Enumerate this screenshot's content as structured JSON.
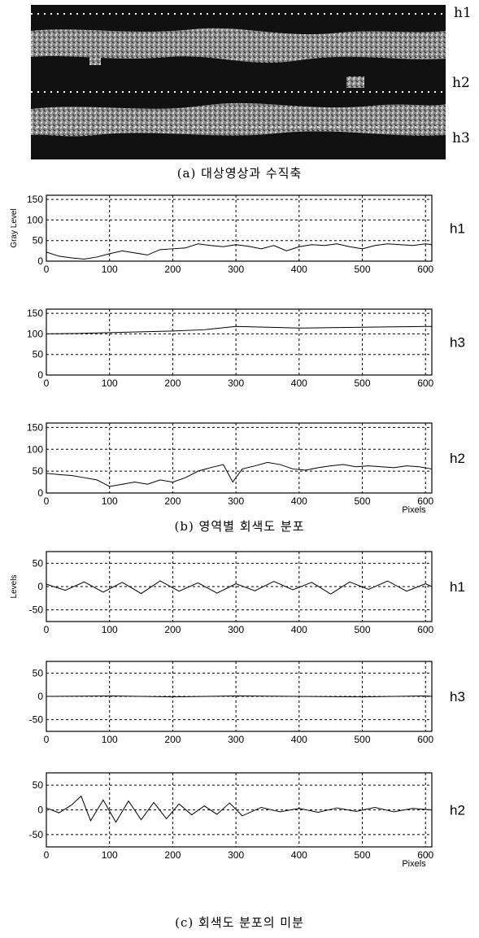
{
  "figure": {
    "image_labels": [
      "h1",
      "h2",
      "h3"
    ],
    "captions": {
      "a": "(a) 대상영상과 수직축",
      "b": "(b) 영역별 회색도 분포",
      "c": "(c) 회색도 분포의 미분"
    }
  },
  "chart_data": [
    {
      "type": "line",
      "id": "b-h1",
      "side_label": "h1",
      "ylabel": "Gray Level",
      "xlabel": "",
      "xlim": [
        0,
        610
      ],
      "ylim": [
        0,
        160
      ],
      "xticks": [
        0,
        100,
        200,
        300,
        400,
        500,
        600
      ],
      "yticks": [
        0,
        50,
        100,
        150
      ],
      "x": [
        0,
        20,
        40,
        60,
        80,
        100,
        120,
        140,
        160,
        180,
        200,
        220,
        240,
        260,
        280,
        300,
        320,
        340,
        360,
        380,
        400,
        420,
        440,
        460,
        480,
        500,
        520,
        540,
        560,
        580,
        600,
        610
      ],
      "y": [
        22,
        12,
        8,
        5,
        10,
        18,
        25,
        20,
        15,
        28,
        30,
        32,
        42,
        38,
        35,
        40,
        36,
        30,
        38,
        25,
        35,
        40,
        38,
        42,
        35,
        30,
        38,
        42,
        40,
        38,
        42,
        40
      ]
    },
    {
      "type": "line",
      "id": "b-h3",
      "side_label": "h3",
      "ylabel": "",
      "xlabel": "",
      "xlim": [
        0,
        610
      ],
      "ylim": [
        0,
        160
      ],
      "xticks": [
        0,
        100,
        200,
        300,
        400,
        500,
        600
      ],
      "yticks": [
        0,
        50,
        100,
        150
      ],
      "x": [
        0,
        50,
        100,
        150,
        200,
        250,
        300,
        350,
        400,
        450,
        500,
        550,
        600,
        610
      ],
      "y": [
        100,
        101,
        103,
        105,
        107,
        110,
        118,
        116,
        114,
        115,
        116,
        117,
        118,
        118
      ]
    },
    {
      "type": "line",
      "id": "b-h2",
      "side_label": "h2",
      "ylabel": "",
      "xlabel": "Pixels",
      "xlim": [
        0,
        610
      ],
      "ylim": [
        0,
        160
      ],
      "xticks": [
        0,
        100,
        200,
        300,
        400,
        500,
        600
      ],
      "yticks": [
        0,
        50,
        100,
        150
      ],
      "x": [
        0,
        20,
        40,
        60,
        80,
        100,
        120,
        140,
        160,
        180,
        200,
        220,
        240,
        260,
        280,
        295,
        310,
        330,
        350,
        370,
        390,
        410,
        430,
        450,
        470,
        490,
        510,
        530,
        550,
        570,
        590,
        610
      ],
      "y": [
        45,
        42,
        40,
        35,
        30,
        15,
        20,
        25,
        20,
        30,
        25,
        35,
        50,
        58,
        65,
        25,
        55,
        62,
        70,
        65,
        55,
        52,
        58,
        62,
        65,
        60,
        62,
        60,
        58,
        62,
        60,
        55
      ]
    },
    {
      "type": "line",
      "id": "c-h1",
      "side_label": "h1",
      "ylabel": "Levels",
      "xlabel": "",
      "xlim": [
        0,
        610
      ],
      "ylim": [
        -75,
        75
      ],
      "xticks": [
        0,
        100,
        200,
        300,
        400,
        500,
        600
      ],
      "yticks": [
        -50,
        0,
        50
      ],
      "x": [
        0,
        30,
        60,
        90,
        120,
        150,
        180,
        210,
        240,
        270,
        300,
        330,
        360,
        390,
        420,
        450,
        480,
        510,
        540,
        570,
        600,
        610
      ],
      "y": [
        5,
        -8,
        10,
        -12,
        9,
        -15,
        12,
        -10,
        8,
        -14,
        6,
        -9,
        11,
        -7,
        9,
        -16,
        10,
        -6,
        12,
        -10,
        6,
        0
      ]
    },
    {
      "type": "line",
      "id": "c-h3",
      "side_label": "h3",
      "ylabel": "",
      "xlabel": "",
      "xlim": [
        0,
        610
      ],
      "ylim": [
        -75,
        75
      ],
      "xticks": [
        0,
        100,
        200,
        300,
        400,
        500,
        600
      ],
      "yticks": [
        -50,
        0,
        50
      ],
      "x": [
        0,
        100,
        200,
        300,
        400,
        500,
        600,
        610
      ],
      "y": [
        0,
        1,
        -1,
        1,
        0,
        -1,
        1,
        0
      ]
    },
    {
      "type": "line",
      "id": "c-h2",
      "side_label": "h2",
      "ylabel": "",
      "xlabel": "Pixels",
      "xlim": [
        0,
        610
      ],
      "ylim": [
        -75,
        75
      ],
      "xticks": [
        0,
        100,
        200,
        300,
        400,
        500,
        600
      ],
      "yticks": [
        -50,
        0,
        50
      ],
      "x": [
        0,
        20,
        40,
        55,
        70,
        90,
        110,
        130,
        150,
        170,
        190,
        210,
        230,
        250,
        270,
        290,
        310,
        340,
        370,
        400,
        430,
        460,
        490,
        520,
        550,
        580,
        610
      ],
      "y": [
        4,
        -6,
        10,
        28,
        -22,
        20,
        -25,
        18,
        -20,
        15,
        -18,
        12,
        -10,
        8,
        -9,
        14,
        -12,
        5,
        -4,
        3,
        -5,
        4,
        -3,
        5,
        -4,
        3,
        0
      ]
    }
  ]
}
